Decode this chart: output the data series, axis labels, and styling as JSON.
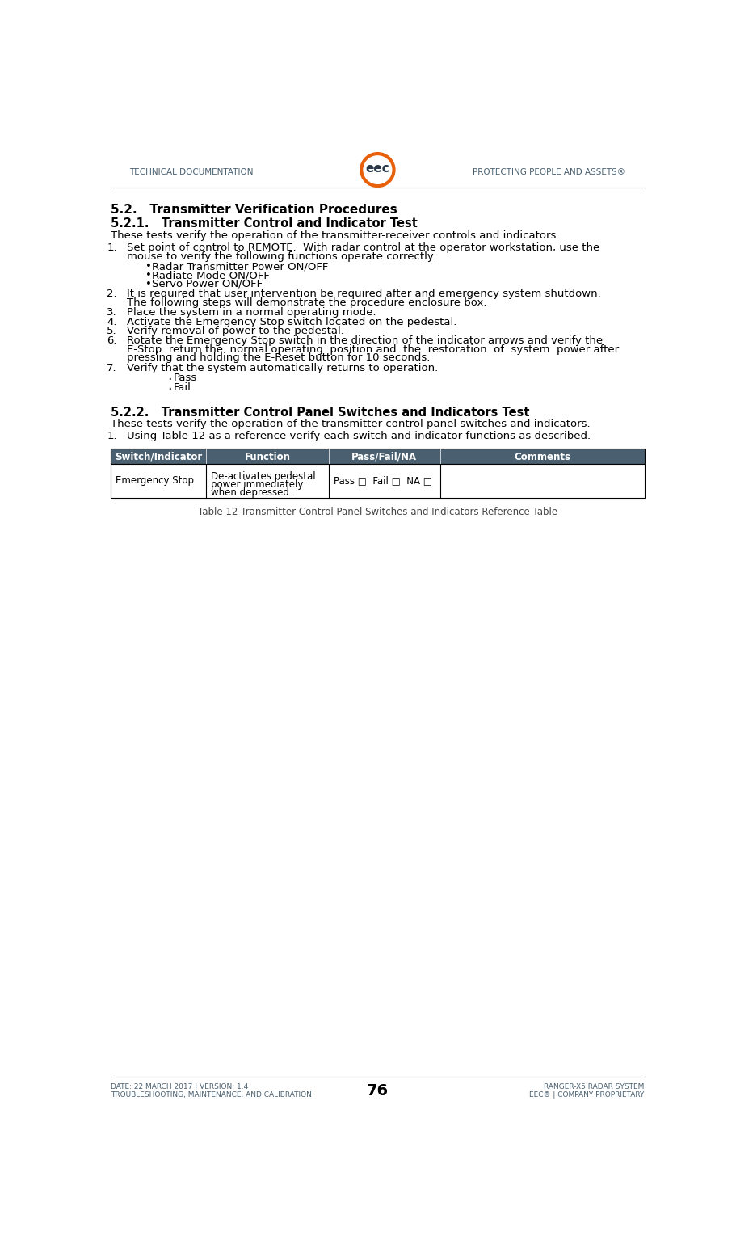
{
  "header_left": "Technical Documentation",
  "header_right": "Protecting People and Assets®",
  "footer_left_line1": "Date: 22 March 2017 | Version: 1.4",
  "footer_left_line2": "Troubleshooting, Maintenance, and Calibration",
  "footer_center": "76",
  "footer_right_line1": "Ranger-X5 Radar System",
  "footer_right_line2": "EEC® | Company Proprietary",
  "section_521_title": "5.2.   Transmitter Verification Procedures",
  "section_521_subtitle": "5.2.1.   Transmitter Control and Indicator Test",
  "section_521_intro": "These tests verify the operation of the transmitter-receiver controls and indicators.",
  "item1_line1": "Set point of control to REMOTE.  With radar control at the operator workstation, use the",
  "item1_line2": "mouse to verify the following functions operate correctly:",
  "bullet_sub_521_1": [
    "Radar Transmitter Power ON/OFF",
    "Radiate Mode ON/OFF",
    "Servo Power ON/OFF"
  ],
  "item2_line1": "It is required that user intervention be required after and emergency system shutdown.",
  "item2_line2": "The following steps will demonstrate the procedure enclosure box.",
  "item3": "Place the system in a normal operating mode.",
  "item4": "Activate the Emergency Stop switch located on the pedestal.",
  "item5": "Verify removal of power to the pedestal.",
  "item6_line1": "Rotate the Emergency Stop switch in the direction of the indicator arrows and verify the",
  "item6_line2": "E-Stop  return the  normal operating  position and  the  restoration  of  system  power after",
  "item6_line3": "pressing and holding the E-Reset button for 10 seconds.",
  "item7": "Verify that the system automatically returns to operation.",
  "pass_fail_bullets": [
    "Pass",
    "Fail"
  ],
  "section_522_title": "5.2.2.   Transmitter Control Panel Switches and Indicators Test",
  "section_522_intro": "These tests verify the operation of the transmitter control panel switches and indicators.",
  "section_522_item": "Using Table 12 as a reference verify each switch and indicator functions as described.",
  "table_headers": [
    "Switch/Indicator",
    "Function",
    "Pass/Fail/NA",
    "Comments"
  ],
  "table_cell0": "Emergency Stop",
  "table_cell1_lines": [
    "De-activates pedestal",
    "power immediately",
    "when depressed."
  ],
  "table_cell2": "Pass □  Fail □  NA □",
  "table_cell3": "",
  "table_caption": "Table 12 Transmitter Control Panel Switches and Indicators Reference Table",
  "text_color": "#000000",
  "header_color": "#4a6070",
  "bg_color": "#ffffff",
  "orange_color": "#e8600a",
  "table_header_bg": "#4a6070",
  "table_header_text": "#ffffff",
  "table_border_color": "#000000",
  "line_color": "#aaaaaa"
}
